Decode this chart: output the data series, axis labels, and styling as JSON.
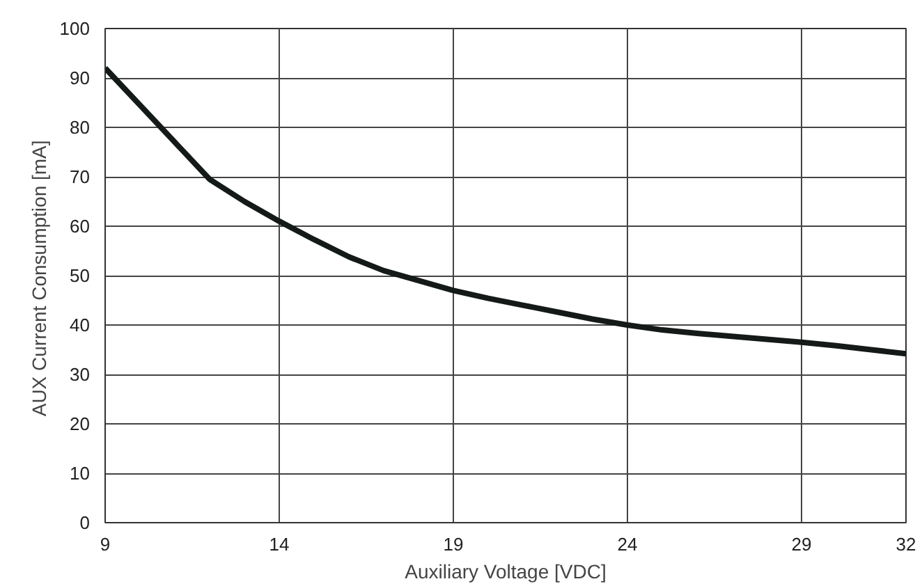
{
  "chart_data": {
    "type": "line",
    "xlabel": "Auxiliary Voltage [VDC]",
    "ylabel": "AUX Current Consumption  [mA]",
    "x": [
      9,
      10,
      11,
      12,
      13,
      14,
      15,
      16,
      17,
      18,
      19,
      20,
      21,
      22,
      23,
      24,
      25,
      26,
      27,
      28,
      29,
      30,
      31,
      32
    ],
    "series": [
      {
        "color": "#141a17",
        "values": [
          92,
          84.5,
          77,
          69.5,
          65,
          61,
          57.3,
          53.8,
          51,
          49,
          47,
          45.4,
          44,
          42.6,
          41.2,
          40,
          39,
          38.3,
          37.7,
          37.1,
          36.5,
          35.8,
          35,
          34.2
        ]
      }
    ],
    "xlim": [
      9,
      32
    ],
    "ylim": [
      0,
      100
    ],
    "xticks": [
      9,
      14,
      19,
      24,
      29,
      32
    ],
    "yticks": [
      0,
      10,
      20,
      30,
      40,
      50,
      60,
      70,
      80,
      90,
      100
    ],
    "grid": true,
    "marker": "none",
    "line_style": "solid"
  }
}
